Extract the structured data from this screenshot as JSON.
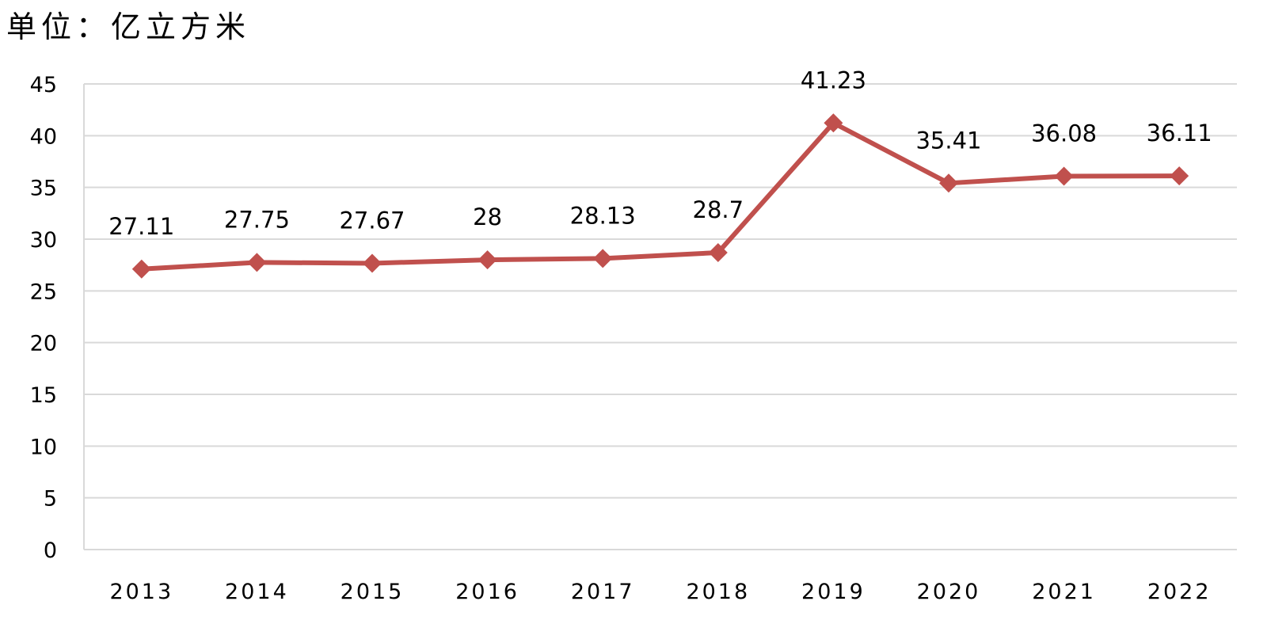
{
  "chart_data": {
    "type": "line",
    "unit_label": "单位：亿立方米",
    "categories": [
      "2013",
      "2014",
      "2015",
      "2016",
      "2017",
      "2018",
      "2019",
      "2020",
      "2021",
      "2022"
    ],
    "series": [
      {
        "values": [
          27.11,
          27.75,
          27.67,
          28,
          28.13,
          28.7,
          41.23,
          35.41,
          36.08,
          36.11
        ],
        "labels": [
          "27.11",
          "27.75",
          "27.67",
          "28",
          "28.13",
          "28.7",
          "41.23",
          "35.41",
          "36.08",
          "36.11"
        ],
        "color": "#c0504d",
        "marker": "diamond"
      }
    ],
    "ylim": [
      0,
      45
    ],
    "yticks": [
      "0",
      "5",
      "10",
      "15",
      "20",
      "25",
      "30",
      "35",
      "40",
      "45"
    ],
    "grid": true,
    "legend": "none"
  }
}
